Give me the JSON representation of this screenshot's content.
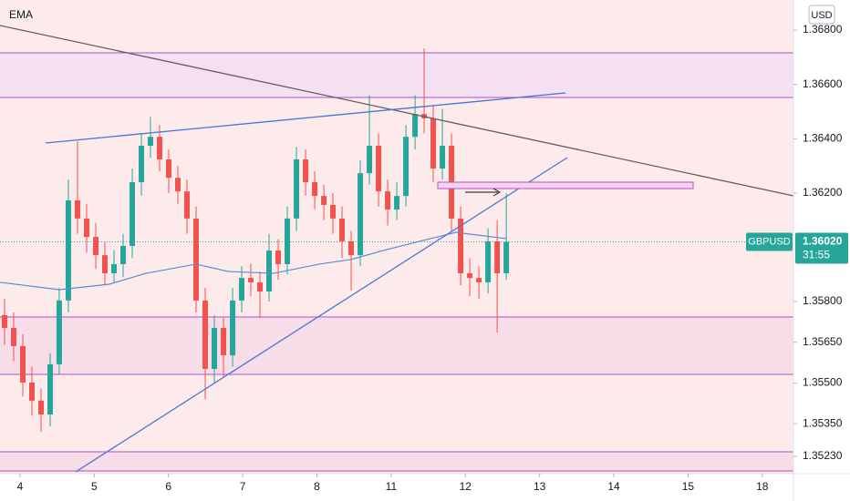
{
  "chart_data": {
    "type": "candlestick",
    "indicator": "EMA",
    "currency": "USD",
    "symbol": "GBPUSD",
    "last_price": 1.3602,
    "last_price_label": "1.36020",
    "countdown": "31:55",
    "up_color": "#26a69a",
    "down_color": "#ef5350",
    "ema_color": "#5b8bd6",
    "x": [
      -0.209,
      -0.086,
      0.037,
      0.16,
      0.283,
      0.406,
      0.528,
      0.651,
      0.774,
      0.897,
      1.02,
      1.143,
      1.266,
      1.389,
      1.512,
      1.635,
      1.757,
      1.88,
      2.003,
      2.126,
      2.249,
      2.372,
      2.495,
      2.618,
      2.741,
      2.864,
      2.986,
      3.109,
      3.232,
      3.355,
      3.478,
      3.601,
      3.724,
      3.847,
      3.97,
      4.093,
      4.215,
      4.338,
      4.461,
      4.584,
      4.707,
      4.83,
      4.953,
      5.076,
      5.199,
      5.322,
      5.444,
      5.567,
      5.69,
      5.813,
      5.936,
      6.059,
      6.182,
      6.305,
      6.428,
      6.551
    ],
    "open": [
      1.3575,
      1.35703,
      1.35636,
      1.35502,
      1.35435,
      1.35384,
      1.35569,
      1.35804,
      1.36173,
      1.36106,
      1.36038,
      1.35971,
      1.35904,
      1.35938,
      1.36005,
      1.3624,
      1.36374,
      1.36407,
      1.36324,
      1.36256,
      1.36206,
      1.36106,
      1.35804,
      1.35552,
      1.35703,
      1.35602,
      1.35804,
      1.35887,
      1.35871,
      1.35837,
      1.35988,
      1.35938,
      1.36106,
      1.36324,
      1.3624,
      1.36189,
      1.36156,
      1.36106,
      1.36022,
      1.35971,
      1.36273,
      1.36374,
      1.36206,
      1.36139,
      1.36189,
      1.36407,
      1.36491,
      1.36475,
      1.3629,
      1.36374,
      1.36106,
      1.35904,
      1.35887,
      1.35871,
      1.36022,
      1.35904
    ],
    "high": [
      1.3581,
      1.3576,
      1.3568,
      1.3556,
      1.3548,
      1.3561,
      1.3585,
      1.3625,
      1.3639,
      1.3616,
      1.3609,
      1.3602,
      1.3599,
      1.3605,
      1.3629,
      1.3642,
      1.3648,
      1.3645,
      1.3636,
      1.363,
      1.3625,
      1.3615,
      1.3585,
      1.3575,
      1.3574,
      1.3585,
      1.3593,
      1.3594,
      1.3591,
      1.3605,
      1.3603,
      1.3615,
      1.3637,
      1.3636,
      1.3628,
      1.3623,
      1.362,
      1.3615,
      1.3606,
      1.3632,
      1.3656,
      1.3642,
      1.3625,
      1.3624,
      1.3645,
      1.3656,
      1.36733,
      1.3652,
      1.3651,
      1.3642,
      1.3615,
      1.3596,
      1.3593,
      1.3607,
      1.361,
      1.36199
    ],
    "low": [
      1.3564,
      1.3558,
      1.3545,
      1.3538,
      1.3532,
      1.3534,
      1.3553,
      1.3576,
      1.3605,
      1.3598,
      1.3592,
      1.3586,
      1.3587,
      1.3589,
      1.3596,
      1.3619,
      1.3633,
      1.3628,
      1.362,
      1.3616,
      1.3605,
      1.3576,
      1.3544,
      1.355,
      1.3552,
      1.3556,
      1.3576,
      1.3582,
      1.3574,
      1.358,
      1.3588,
      1.359,
      1.3606,
      1.3619,
      1.3614,
      1.361,
      1.3605,
      1.3596,
      1.3584,
      1.3593,
      1.3623,
      1.3615,
      1.3608,
      1.361,
      1.3615,
      1.3636,
      1.3642,
      1.3624,
      1.3625,
      1.3606,
      1.3586,
      1.3582,
      1.3581,
      1.3583,
      1.35686,
      1.3588
    ],
    "close": [
      1.35703,
      1.35636,
      1.35502,
      1.35435,
      1.35384,
      1.35569,
      1.35804,
      1.36173,
      1.36106,
      1.36038,
      1.35971,
      1.35904,
      1.35938,
      1.36005,
      1.3624,
      1.36374,
      1.36407,
      1.36324,
      1.36256,
      1.36206,
      1.36106,
      1.35804,
      1.35552,
      1.35703,
      1.35602,
      1.35804,
      1.35887,
      1.35871,
      1.35837,
      1.35988,
      1.35938,
      1.36106,
      1.36324,
      1.3624,
      1.36189,
      1.36156,
      1.36106,
      1.36022,
      1.35971,
      1.36273,
      1.36374,
      1.36206,
      1.36139,
      1.36189,
      1.36407,
      1.36491,
      1.36475,
      1.3629,
      1.36374,
      1.36106,
      1.35904,
      1.35887,
      1.35871,
      1.36022,
      1.35904,
      1.3602
    ],
    "ema_x": [
      -0.27,
      0.529,
      1.204,
      1.696,
      2.371,
      2.801,
      3.416,
      4.03,
      4.46,
      4.89,
      5.381,
      5.873,
      6.548
    ],
    "ema": [
      1.35871,
      1.35844,
      1.35864,
      1.35904,
      1.35938,
      1.35911,
      1.35904,
      1.35938,
      1.35955,
      1.35988,
      1.36022,
      1.36055,
      1.36032
    ],
    "xlim": [
      -0.27,
      10.42
    ],
    "xticks": [
      {
        "value": 0,
        "label": "4"
      },
      {
        "value": 1,
        "label": "5"
      },
      {
        "value": 2,
        "label": "6"
      },
      {
        "value": 3,
        "label": "7"
      },
      {
        "value": 4,
        "label": "8"
      },
      {
        "value": 5,
        "label": "11"
      },
      {
        "value": 6,
        "label": "12"
      },
      {
        "value": 7,
        "label": "13"
      },
      {
        "value": 8,
        "label": "14"
      },
      {
        "value": 9,
        "label": "15"
      },
      {
        "value": 10,
        "label": "18"
      }
    ],
    "ylim": [
      1.35166,
      1.36911
    ],
    "yticks": [
      {
        "value": 1.368,
        "label": "1.36800"
      },
      {
        "value": 1.366,
        "label": "1.36600"
      },
      {
        "value": 1.364,
        "label": "1.36400"
      },
      {
        "value": 1.362,
        "label": "1.36200"
      },
      {
        "value": 1.358,
        "label": "1.35800"
      },
      {
        "value": 1.3565,
        "label": "1.35650"
      },
      {
        "value": 1.355,
        "label": "1.35500"
      },
      {
        "value": 1.3535,
        "label": "1.35350"
      },
      {
        "value": 1.3523,
        "label": "1.35230"
      }
    ]
  }
}
